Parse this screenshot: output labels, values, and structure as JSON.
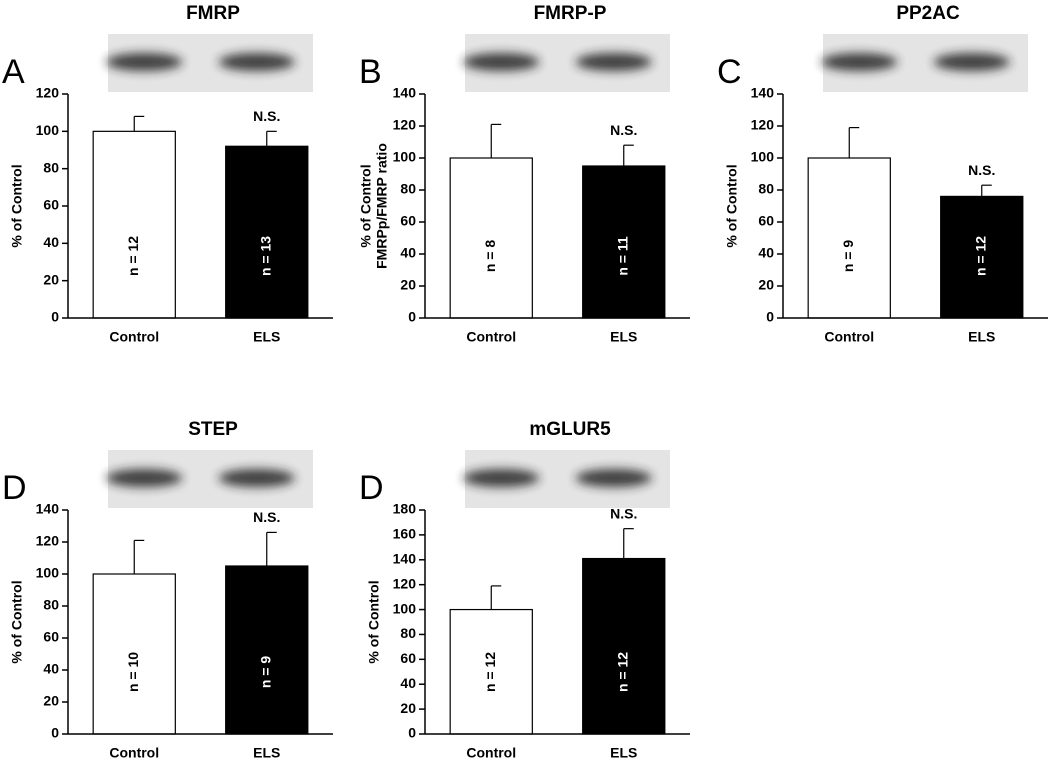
{
  "chart_data": [
    {
      "type": "bar",
      "title": "FMRP",
      "panel": "A",
      "ylabel": [
        "% of Control"
      ],
      "categories": [
        "Control",
        "ELS"
      ],
      "values": [
        100,
        92
      ],
      "errors": [
        8,
        8
      ],
      "colors": [
        "#ffffff",
        "#000000"
      ],
      "n_labels": [
        "n = 12",
        "n = 13"
      ],
      "annotation": "N.S.",
      "ylim": [
        0,
        120
      ],
      "yticks": [
        0,
        20,
        40,
        60,
        80,
        100,
        120
      ]
    },
    {
      "type": "bar",
      "title": "FMRP-P",
      "panel": "B",
      "ylabel": [
        "% of Control",
        "FMRPp/FMRP ratio"
      ],
      "categories": [
        "Control",
        "ELS"
      ],
      "values": [
        100,
        95
      ],
      "errors": [
        21,
        13
      ],
      "colors": [
        "#ffffff",
        "#000000"
      ],
      "n_labels": [
        "n = 8",
        "n = 11"
      ],
      "annotation": "N.S.",
      "ylim": [
        0,
        140
      ],
      "yticks": [
        0,
        20,
        40,
        60,
        80,
        100,
        120,
        140
      ]
    },
    {
      "type": "bar",
      "title": "PP2AC",
      "panel": "C",
      "ylabel": [
        "% of Control"
      ],
      "categories": [
        "Control",
        "ELS"
      ],
      "values": [
        100,
        76
      ],
      "errors": [
        19,
        7
      ],
      "colors": [
        "#ffffff",
        "#000000"
      ],
      "n_labels": [
        "n = 9",
        "n = 12"
      ],
      "annotation": "N.S.",
      "ylim": [
        0,
        140
      ],
      "yticks": [
        0,
        20,
        40,
        60,
        80,
        100,
        120,
        140
      ]
    },
    {
      "type": "bar",
      "title": "STEP",
      "panel": "D",
      "ylabel": [
        "% of Control"
      ],
      "categories": [
        "Control",
        "ELS"
      ],
      "values": [
        100,
        105
      ],
      "errors": [
        21,
        21
      ],
      "colors": [
        "#ffffff",
        "#000000"
      ],
      "n_labels": [
        "n = 10",
        "n = 9"
      ],
      "annotation": "N.S.",
      "ylim": [
        0,
        140
      ],
      "yticks": [
        0,
        20,
        40,
        60,
        80,
        100,
        120,
        140
      ]
    },
    {
      "type": "bar",
      "title": "mGLUR5",
      "panel": "D",
      "ylabel": [
        "% of Control"
      ],
      "categories": [
        "Control",
        "ELS"
      ],
      "values": [
        100,
        141
      ],
      "errors": [
        19,
        24
      ],
      "colors": [
        "#ffffff",
        "#000000"
      ],
      "n_labels": [
        "n = 12",
        "n = 12"
      ],
      "annotation": "N.S.",
      "ylim": [
        0,
        180
      ],
      "yticks": [
        0,
        20,
        40,
        60,
        80,
        100,
        120,
        140,
        160,
        180
      ]
    }
  ]
}
